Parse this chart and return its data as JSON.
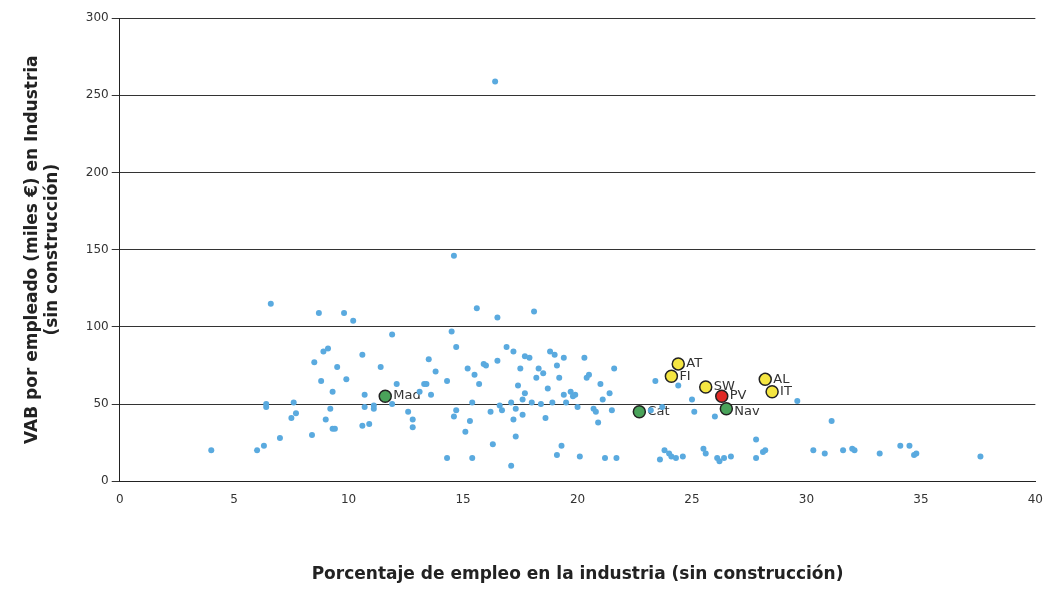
{
  "chart_data": {
    "type": "scatter",
    "xlabel": "Porcentaje de empleo en la industria (sin construcción)",
    "ylabel": "VAB por empleado (miles €) en Industria\n(sin construcción)",
    "xlim": [
      0,
      40
    ],
    "xticks": [
      0,
      5,
      10,
      15,
      20,
      25,
      30,
      35,
      40
    ],
    "ylim": [
      0,
      300
    ],
    "yticks": [
      0,
      50,
      100,
      150,
      200,
      250,
      300
    ],
    "grid": "y",
    "legend": false,
    "marker": "circle",
    "series": [
      {
        "color": "#5aaadf",
        "x": [
          4.0,
          6.0,
          6.3,
          6.4,
          6.4,
          6.6,
          7.0,
          7.5,
          7.6,
          7.7,
          8.4,
          8.5,
          8.7,
          8.8,
          8.9,
          9.0,
          9.1,
          9.2,
          9.3,
          9.3,
          9.4,
          9.5,
          9.8,
          9.9,
          10.2,
          10.6,
          10.6,
          10.7,
          10.7,
          10.9,
          11.1,
          11.1,
          11.4,
          11.9,
          11.9,
          12.1,
          12.6,
          12.8,
          12.8,
          13.1,
          13.3,
          13.4,
          13.5,
          13.6,
          13.8,
          14.3,
          14.3,
          14.5,
          14.6,
          14.6,
          14.7,
          14.7,
          15.1,
          15.2,
          15.3,
          15.4,
          15.4,
          15.5,
          15.6,
          15.7,
          15.9,
          16.0,
          16.2,
          16.3,
          16.4,
          16.5,
          16.5,
          16.6,
          16.7,
          16.9,
          17.1,
          17.1,
          17.2,
          17.2,
          17.3,
          17.3,
          17.4,
          17.5,
          17.6,
          17.6,
          17.7,
          17.7,
          17.9,
          18.0,
          18.1,
          18.2,
          18.3,
          18.4,
          18.5,
          18.6,
          18.7,
          18.8,
          18.9,
          19.0,
          19.1,
          19.1,
          19.2,
          19.3,
          19.4,
          19.4,
          19.5,
          19.7,
          19.8,
          19.9,
          20.0,
          20.1,
          20.3,
          20.4,
          20.5,
          20.7,
          20.8,
          20.9,
          21.0,
          21.1,
          21.2,
          21.4,
          21.5,
          21.6,
          21.7,
          23.2,
          23.4,
          23.6,
          23.7,
          23.8,
          24.0,
          24.1,
          24.3,
          24.4,
          24.6,
          25.0,
          25.1,
          25.5,
          25.6,
          26.0,
          26.1,
          26.2,
          26.4,
          26.7,
          27.8,
          27.8,
          28.1,
          28.2,
          29.6,
          30.3,
          30.8,
          31.1,
          31.6,
          32.0,
          32.1,
          33.2,
          34.1,
          34.5,
          34.7,
          34.8,
          37.6
        ],
        "values": [
          20,
          20,
          23,
          48,
          50,
          115,
          28,
          41,
          51,
          44,
          30,
          77,
          109,
          65,
          84,
          40,
          86,
          47,
          58,
          34,
          34,
          74,
          109,
          66,
          104,
          82,
          36,
          48,
          56,
          37,
          49,
          47,
          74,
          95,
          50,
          63,
          45,
          40,
          35,
          58,
          63,
          63,
          79,
          56,
          71,
          15,
          65,
          97,
          42,
          146,
          87,
          46,
          32,
          73,
          39,
          15,
          51,
          69,
          112,
          63,
          76,
          75,
          45,
          24,
          259,
          78,
          106,
          49,
          46,
          87,
          51,
          10,
          84,
          40,
          29,
          47,
          62,
          73,
          43,
          53,
          81,
          57,
          80,
          51,
          110,
          67,
          73,
          50,
          70,
          41,
          60,
          84,
          51,
          82,
          75,
          17,
          67,
          23,
          80,
          56,
          51,
          58,
          55,
          56,
          48,
          16,
          80,
          67,
          69,
          47,
          45,
          38,
          63,
          53,
          15,
          57,
          46,
          73,
          15,
          46,
          65,
          14,
          48,
          20,
          18,
          16,
          15,
          62,
          16,
          53,
          45,
          21,
          18,
          42,
          15,
          13,
          15,
          16,
          27,
          15,
          19,
          20,
          52,
          20,
          18,
          39,
          20,
          21,
          20,
          18,
          23,
          23,
          17,
          18,
          16
        ]
      },
      {
        "color": "#4aa35a",
        "x": [
          11.6,
          22.7,
          26.5
        ],
        "values": [
          55,
          45,
          47
        ]
      },
      {
        "color": "#f5e642",
        "x": [
          24.4,
          24.1,
          25.6,
          28.2,
          28.5
        ],
        "values": [
          76,
          68,
          61,
          66,
          58
        ]
      },
      {
        "color": "#e02a27",
        "x": [
          26.3
        ],
        "values": [
          55
        ]
      }
    ],
    "annotations": [
      {
        "text": "Mad",
        "x": 11.6,
        "y": 55
      },
      {
        "text": "Cat",
        "x": 22.7,
        "y": 45
      },
      {
        "text": "Nav",
        "x": 26.5,
        "y": 47
      },
      {
        "text": "AT",
        "x": 24.4,
        "y": 76
      },
      {
        "text": "FI",
        "x": 24.1,
        "y": 68
      },
      {
        "text": "SW",
        "x": 25.6,
        "y": 61
      },
      {
        "text": "AL",
        "x": 28.2,
        "y": 66
      },
      {
        "text": "IT",
        "x": 28.5,
        "y": 58
      },
      {
        "text": "PV",
        "x": 26.3,
        "y": 55
      }
    ]
  }
}
